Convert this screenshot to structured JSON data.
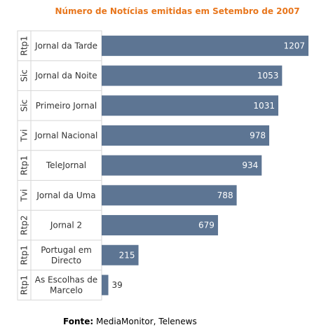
{
  "chart_data": {
    "type": "bar",
    "orientation": "horizontal",
    "title": "Número de Notícias emitidas em Setembro de 2007",
    "categories": [
      {
        "channel": "Rtp1",
        "program": "Jornal da Tarde"
      },
      {
        "channel": "Sic",
        "program": "Jornal da Noite"
      },
      {
        "channel": "Sic",
        "program": "Primeiro Jornal"
      },
      {
        "channel": "Tvi",
        "program": "Jornal Nacional"
      },
      {
        "channel": "Rtp1",
        "program": "TeleJornal"
      },
      {
        "channel": "Tvi",
        "program": "Jornal da Uma"
      },
      {
        "channel": "Rtp2",
        "program": "Jornal 2"
      },
      {
        "channel": "Rtp1",
        "program": "Portugal em Directo"
      },
      {
        "channel": "Rtp1",
        "program": "As Escolhas de Marcelo"
      }
    ],
    "values": [
      1207,
      1053,
      1031,
      978,
      934,
      788,
      679,
      215,
      39
    ],
    "xlim": [
      0,
      1207
    ],
    "bar_color": "#5d7593",
    "label_color_inside": "#ffffff",
    "label_color_outside": "#333333",
    "grid": false
  },
  "title_color": "#e8761c",
  "source": {
    "label": "Fonte:",
    "text": "MediaMonitor, Telenews"
  }
}
